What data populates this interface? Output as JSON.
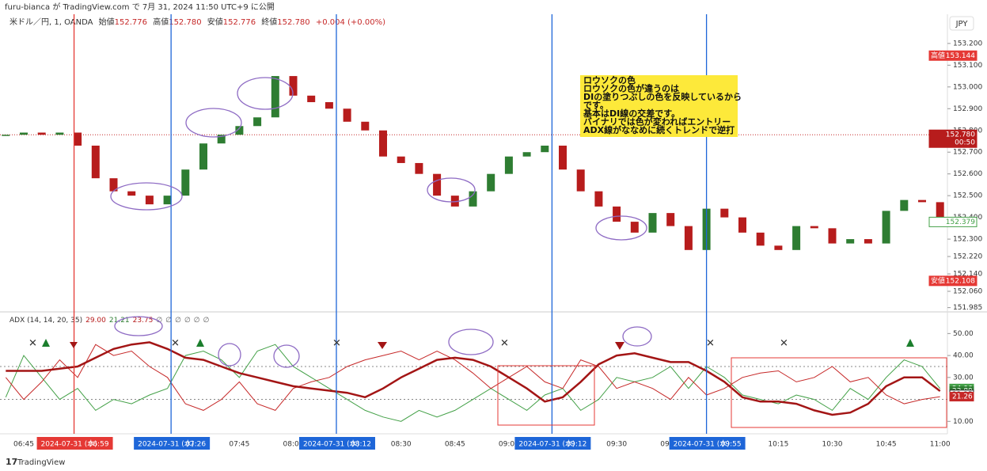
{
  "header": {
    "published": "furu-bianca が TradingView.com で 7月 31, 2024 11:50 UTC+9 に公開",
    "symbol": "米ドル／円, 1, OANDA",
    "ohlc": [
      {
        "label": "始値",
        "value": "152.776"
      },
      {
        "label": "高値",
        "value": "152.780"
      },
      {
        "label": "安値",
        "value": "152.776"
      },
      {
        "label": "終値",
        "value": "152.780"
      }
    ],
    "change": "+0.004 (+0.00%)",
    "currency": "JPY"
  },
  "annotation": {
    "lines": [
      "ロウソクの色",
      "ロウソクの色が違うのは",
      "DIの塗りつぶしの色を反映しているから",
      "です。",
      "基本はDI線の交差です。",
      "バイナリでは色が変わればエントリー",
      "ADX線がななめに続くトレンドで逆打"
    ]
  },
  "footer": {
    "brand": "TradingView"
  },
  "chart_data": [
    {
      "type": "candlestick",
      "up_color": "#2e7d32",
      "down_color": "#b71c1c",
      "x": [
        "06:40",
        "06:45",
        "06:50",
        "06:55",
        "07:00",
        "07:05",
        "07:10",
        "07:15",
        "07:20",
        "07:25",
        "07:30",
        "07:35",
        "07:40",
        "07:45",
        "07:50",
        "07:55",
        "08:00",
        "08:05",
        "08:10",
        "08:15",
        "08:20",
        "08:25",
        "08:30",
        "08:35",
        "08:40",
        "08:45",
        "08:50",
        "08:55",
        "09:00",
        "09:05",
        "09:10",
        "09:15",
        "09:20",
        "09:25",
        "09:30",
        "09:35",
        "09:40",
        "09:45",
        "09:50",
        "09:55",
        "10:00",
        "10:05",
        "10:10",
        "10:15",
        "10:20",
        "10:25",
        "10:30",
        "10:35",
        "10:40",
        "10:45",
        "10:50",
        "10:55",
        "11:00"
      ],
      "close": [
        152.78,
        152.79,
        152.78,
        152.79,
        152.73,
        152.58,
        152.52,
        152.5,
        152.46,
        152.5,
        152.62,
        152.74,
        152.78,
        152.82,
        152.86,
        153.05,
        152.96,
        152.93,
        152.9,
        152.84,
        152.8,
        152.68,
        152.65,
        152.6,
        152.5,
        152.45,
        152.52,
        152.6,
        152.68,
        152.7,
        152.73,
        152.62,
        152.52,
        152.45,
        152.38,
        152.33,
        152.42,
        152.36,
        152.25,
        152.44,
        152.4,
        152.33,
        152.27,
        152.25,
        152.36,
        152.35,
        152.28,
        152.3,
        152.28,
        152.43,
        152.48,
        152.47,
        152.4
      ],
      "ylim": [
        151.969,
        153.327
      ],
      "yticks": [
        {
          "value": 153.2,
          "label": "153.200"
        },
        {
          "value": 153.1,
          "label": "153.100"
        },
        {
          "value": 153.0,
          "label": "153.000"
        },
        {
          "value": 152.9,
          "label": "152.900"
        },
        {
          "value": 152.8,
          "label": "152.800"
        },
        {
          "value": 152.7,
          "label": "152.700"
        },
        {
          "value": 152.6,
          "label": "152.600"
        },
        {
          "value": 152.5,
          "label": "152.500"
        },
        {
          "value": 152.4,
          "label": "152.400"
        },
        {
          "value": 152.3,
          "label": "152.300"
        },
        {
          "value": 152.22,
          "label": "152.220"
        },
        {
          "value": 152.14,
          "label": "152.140"
        },
        {
          "value": 152.06,
          "label": "152.060"
        },
        151.985
      ],
      "price_badges": [
        {
          "name": "高値",
          "value": 153.144,
          "color": "#e53935"
        },
        {
          "value": 152.78,
          "label": "152.780",
          "countdown": "00:50",
          "color": "#b71c1c"
        },
        {
          "value": 152.379,
          "color": "#43a047"
        },
        {
          "name": "安値",
          "value": 152.108,
          "color": "#e53935"
        }
      ],
      "markers": [
        {
          "time": "06:59",
          "date": "2024-07-31 (水)",
          "color": "#e53935"
        },
        {
          "time": "07:26",
          "date": "2024-07-31 (水)",
          "color": "#1e66d8"
        },
        {
          "time": "08:12",
          "date": "2024-07-31 (水)",
          "color": "#1e66d8"
        },
        {
          "time": "09:12",
          "date": "2024-07-31 (水)",
          "color": "#1e66d8"
        },
        {
          "time": "09:55",
          "date": "2024-07-31 (水)",
          "color": "#1e66d8"
        }
      ]
    },
    {
      "type": "line",
      "title": "ADX (14, 14, 20, 35)",
      "legend_values": [
        {
          "text": "29.00",
          "color": "#b71c1c"
        },
        {
          "text": "21.21",
          "color": "#2e7d32"
        },
        {
          "text": "23.75",
          "color": "#b71c1c"
        },
        {
          "text": "∅",
          "color": "#666"
        },
        {
          "text": "∅",
          "color": "#666"
        },
        {
          "text": "∅",
          "color": "#666"
        },
        {
          "text": "∅",
          "color": "#666"
        },
        {
          "text": "∅",
          "color": "#666"
        },
        {
          "text": "∅",
          "color": "#666"
        }
      ],
      "x": [
        "06:40",
        "06:45",
        "06:50",
        "06:55",
        "07:00",
        "07:05",
        "07:10",
        "07:15",
        "07:20",
        "07:25",
        "07:30",
        "07:35",
        "07:40",
        "07:45",
        "07:50",
        "07:55",
        "08:00",
        "08:05",
        "08:10",
        "08:15",
        "08:20",
        "08:25",
        "08:30",
        "08:35",
        "08:40",
        "08:45",
        "08:50",
        "08:55",
        "09:00",
        "09:05",
        "09:10",
        "09:15",
        "09:20",
        "09:25",
        "09:30",
        "09:35",
        "09:40",
        "09:45",
        "09:50",
        "09:55",
        "10:00",
        "10:05",
        "10:10",
        "10:15",
        "10:20",
        "10:25",
        "10:30",
        "10:35",
        "10:40",
        "10:45",
        "10:50",
        "10:55",
        "11:00"
      ],
      "series": [
        {
          "color": "#43a047",
          "width": 1,
          "values": [
            21,
            40,
            30,
            20,
            25,
            15,
            20,
            18,
            22,
            25,
            40,
            42,
            38,
            30,
            42,
            45,
            35,
            30,
            25,
            20,
            15,
            12,
            10,
            15,
            12,
            15,
            20,
            25,
            20,
            15,
            22,
            25,
            15,
            20,
            30,
            28,
            30,
            35,
            25,
            35,
            30,
            22,
            20,
            18,
            22,
            20,
            15,
            25,
            20,
            30,
            38,
            35,
            24.96
          ]
        },
        {
          "color": "#c62828",
          "width": 1,
          "values": [
            30,
            20,
            28,
            38,
            30,
            45,
            40,
            42,
            35,
            30,
            18,
            15,
            20,
            28,
            18,
            15,
            25,
            28,
            30,
            35,
            38,
            40,
            42,
            38,
            42,
            38,
            32,
            25,
            30,
            35,
            28,
            25,
            38,
            35,
            25,
            28,
            25,
            20,
            30,
            22,
            25,
            30,
            32,
            33,
            28,
            30,
            35,
            28,
            30,
            22,
            18,
            20,
            21.26
          ]
        },
        {
          "color": "#a31515",
          "width": 2.5,
          "values": [
            33,
            33,
            33,
            34,
            35,
            39,
            43,
            45,
            46,
            43,
            39,
            38,
            35,
            32,
            30,
            28,
            26,
            25,
            24,
            23,
            21,
            25,
            30,
            34,
            38,
            39,
            38,
            35,
            30,
            25,
            19,
            21,
            28,
            36,
            40,
            41,
            39,
            37,
            37,
            33,
            28,
            21,
            19,
            19,
            18,
            15,
            13,
            14,
            18,
            26,
            30,
            30,
            23.8
          ]
        }
      ],
      "levels": [
        35,
        20
      ],
      "ylim": [
        4.7,
        59.5
      ],
      "yticks": [
        {
          "value": 50,
          "label": "50.00"
        },
        {
          "value": 40,
          "label": "40.00"
        },
        {
          "value": 30,
          "label": "30.00"
        },
        {
          "value": 10,
          "label": "10.00"
        }
      ],
      "last_labels": [
        {
          "value": 24.96,
          "color": "#43a047"
        },
        {
          "value": 23.8,
          "label": "23.80",
          "color": "#2e7d32"
        },
        {
          "value": 22.25,
          "color": "#222"
        },
        {
          "value": 21.26,
          "color": "#c62828"
        }
      ],
      "xticks": [
        "06:45",
        "07:00",
        "07:45",
        "08:00",
        "08:30",
        "08:45",
        "09:00",
        "09:30",
        "09:45",
        "10:15",
        "10:30",
        "10:45",
        "11:00"
      ]
    }
  ]
}
